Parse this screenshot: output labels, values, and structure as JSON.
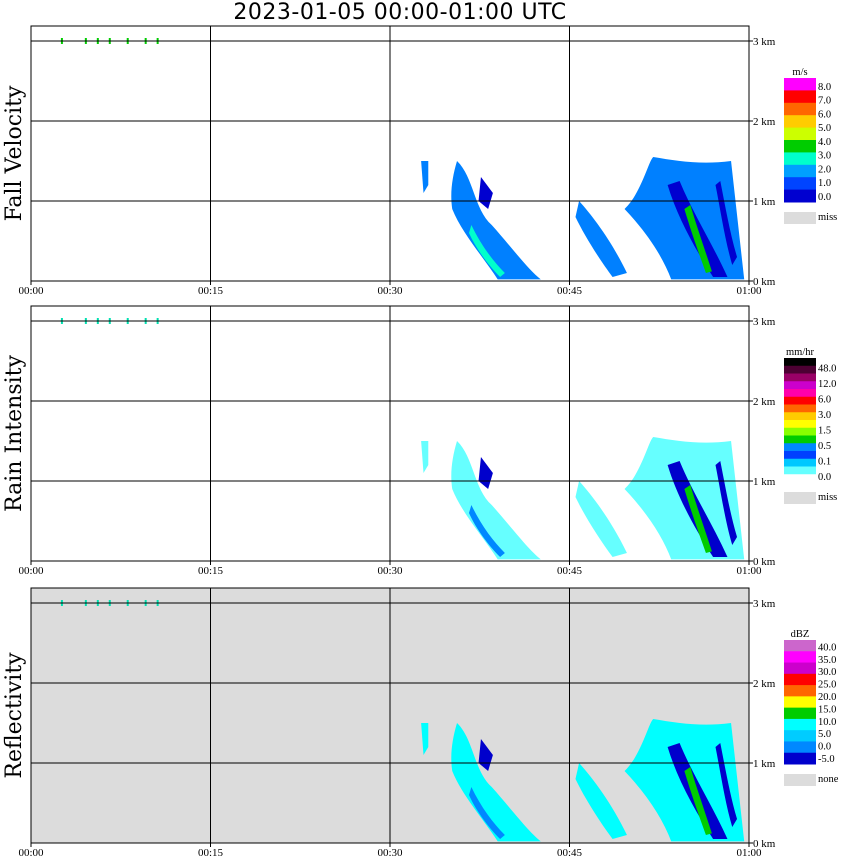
{
  "title": "2023-01-05   00:00-01:00 UTC",
  "chart_data": [
    {
      "type": "heatmap",
      "panel": "fall_velocity",
      "ylabel": "Fall Velocity",
      "x_ticks": [
        "00:00",
        "00:15",
        "00:30",
        "00:45",
        "01:00"
      ],
      "y_ticks": [
        "0 km",
        "1 km",
        "2 km",
        "3 km"
      ],
      "legend": {
        "unit": "m/s",
        "labels": [
          "8.0",
          "7.0",
          "6.0",
          "5.0",
          "4.0",
          "3.0",
          "2.0",
          "1.0",
          "0.0"
        ],
        "colors": [
          "#ff00ff",
          "#ff0000",
          "#ff6600",
          "#ffcc00",
          "#ccff00",
          "#00cc00",
          "#00ffcc",
          "#00a0ff",
          "#0044ff",
          "#0000d0"
        ],
        "miss_label": "miss",
        "miss_color": "#dcdcdc"
      },
      "background": "#ffffff",
      "fill_primary": "#0080ff",
      "fill_secondary": "#00ffcc",
      "fill_dark": "#0000d0",
      "fill_accent": "#00cc00"
    },
    {
      "type": "heatmap",
      "panel": "rain_intensity",
      "ylabel": "Rain Intensity",
      "x_ticks": [
        "00:00",
        "00:15",
        "00:30",
        "00:45",
        "01:00"
      ],
      "y_ticks": [
        "0 km",
        "1 km",
        "2 km",
        "3 km"
      ],
      "legend": {
        "unit": "mm/hr",
        "labels": [
          "48.0",
          "12.0",
          "6.0",
          "3.0",
          "1.5",
          "0.5",
          "0.1",
          "0.0"
        ],
        "colors": [
          "#000000",
          "#4d0033",
          "#990066",
          "#cc00cc",
          "#ff00aa",
          "#ff0000",
          "#ff6600",
          "#ffcc00",
          "#ffff00",
          "#88ff00",
          "#00cc00",
          "#0088ff",
          "#0040ff",
          "#00c8ff",
          "#66ffff",
          "#ffffff"
        ],
        "miss_label": "miss",
        "miss_color": "#dcdcdc"
      },
      "background": "#ffffff",
      "fill_primary": "#66ffff",
      "fill_secondary": "#0088ff",
      "fill_dark": "#0000cc",
      "fill_accent": "#00cc00"
    },
    {
      "type": "heatmap",
      "panel": "reflectivity",
      "ylabel": "Reflectivity",
      "x_ticks": [
        "00:00",
        "00:15",
        "00:30",
        "00:45",
        "01:00"
      ],
      "y_ticks": [
        "0 km",
        "1 km",
        "2 km",
        "3 km"
      ],
      "legend": {
        "unit": "dBZ",
        "labels": [
          "40.0",
          "35.0",
          "30.0",
          "25.0",
          "20.0",
          "15.0",
          "10.0",
          "5.0",
          "0.0",
          "-5.0"
        ],
        "colors": [
          "#cc66cc",
          "#ff00ff",
          "#cc00cc",
          "#ff0000",
          "#ff6600",
          "#ffff00",
          "#00cc00",
          "#00ffff",
          "#00ccff",
          "#0088ff",
          "#0000cc"
        ],
        "miss_label": "none",
        "miss_color": "#dcdcdc"
      },
      "background": "#dcdcdc",
      "fill_primary": "#00ffff",
      "fill_secondary": "#0088ff",
      "fill_dark": "#0000cc",
      "fill_accent": "#00cc00"
    }
  ]
}
